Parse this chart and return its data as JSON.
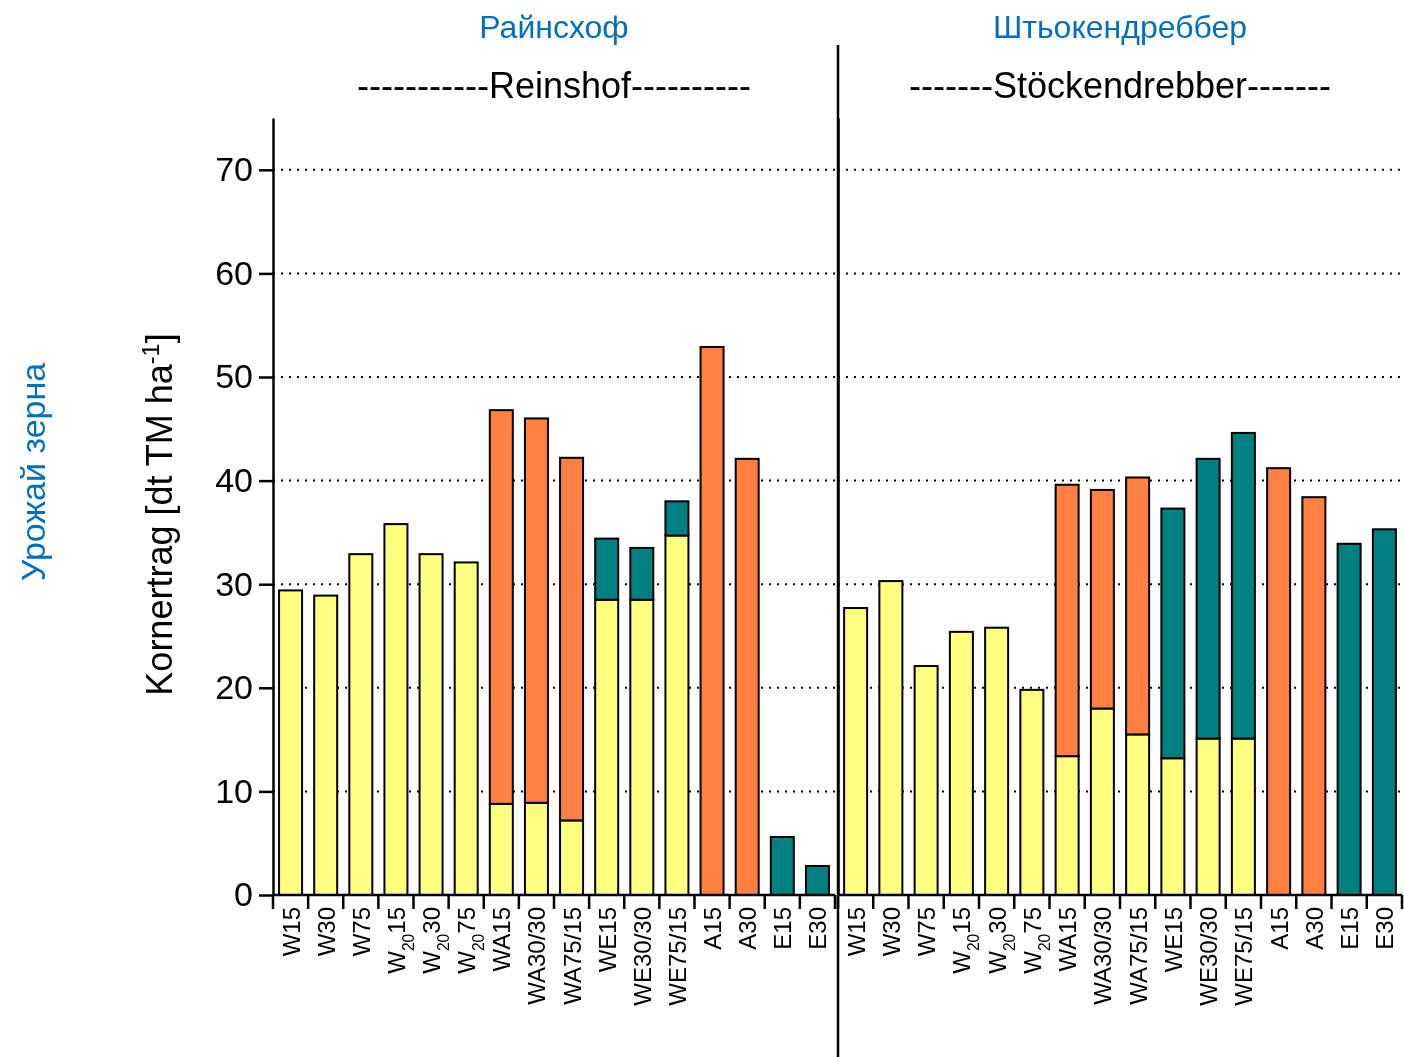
{
  "chart_data": [
    {
      "type": "bar",
      "title": "Райнсхоф",
      "subtitle": "-----------Reinshof----------",
      "ylabel": "Kornertrag [dt TM ha$^{-1}$]",
      "annotations": [
        "Урожай зерна"
      ],
      "categories": [
        "W15",
        "W30",
        "W75",
        "W$_{20}$15",
        "W$_{20}$30",
        "W$_{20}$75",
        "WA15",
        "WA30/30",
        "WA75/15",
        "WE15",
        "WE30/30",
        "WE75/15",
        "A15",
        "A30",
        "E15",
        "E30"
      ],
      "stacked": true,
      "ylim": [
        0,
        75
      ],
      "yticks": [
        0,
        10,
        20,
        30,
        40,
        50,
        60,
        70
      ],
      "grid": "y",
      "series": [
        {
          "values": [
            29.4,
            28.9,
            32.9,
            35.8,
            32.9,
            32.1,
            8.8,
            8.9,
            7.2,
            28.5,
            28.5,
            34.7,
            52.9,
            42.1,
            5.6,
            2.8
          ],
          "colors": [
            "#ffff80",
            "#ffff80",
            "#ffff80",
            "#ffff80",
            "#ffff80",
            "#ffff80",
            "#ffff80",
            "#ffff80",
            "#ffff80",
            "#ffff80",
            "#ffff80",
            "#ffff80",
            "#ff8040",
            "#ff8040",
            "#008080",
            "#008080"
          ]
        },
        {
          "values": [
            null,
            null,
            null,
            null,
            null,
            null,
            38.0,
            37.1,
            35.0,
            5.9,
            5.0,
            3.3,
            null,
            null,
            null,
            null
          ],
          "colors": [
            null,
            null,
            null,
            null,
            null,
            null,
            "#ff8040",
            "#ff8040",
            "#ff8040",
            "#008080",
            "#008080",
            "#008080",
            null,
            null,
            null,
            null
          ]
        }
      ]
    },
    {
      "type": "bar",
      "title": "Штьокендреббер",
      "subtitle": "-------Stöckendrebber-------",
      "categories": [
        "W15",
        "W30",
        "W75",
        "W$_{20}$15",
        "W$_{20}$30",
        "W$_{20}$75",
        "WA15",
        "WA30/30",
        "WA75/15",
        "WE15",
        "WE30/30",
        "WE75/15",
        "A15",
        "A30",
        "E15",
        "E30"
      ],
      "stacked": true,
      "ylim": [
        0,
        75
      ],
      "yticks": [
        0,
        10,
        20,
        30,
        40,
        50,
        60,
        70
      ],
      "grid": "y",
      "tick_labels": "x",
      "series": [
        {
          "values": [
            27.7,
            30.3,
            22.1,
            25.4,
            25.8,
            19.8,
            13.4,
            18.0,
            15.5,
            13.2,
            15.1,
            15.1,
            41.2,
            38.4,
            33.9,
            35.3
          ],
          "colors": [
            "#ffff80",
            "#ffff80",
            "#ffff80",
            "#ffff80",
            "#ffff80",
            "#ffff80",
            "#ffff80",
            "#ffff80",
            "#ffff80",
            "#ffff80",
            "#ffff80",
            "#ffff80",
            "#ff8040",
            "#ff8040",
            "#008080",
            "#008080"
          ]
        },
        {
          "values": [
            null,
            null,
            null,
            null,
            null,
            null,
            26.2,
            21.1,
            24.8,
            24.1,
            27.0,
            29.5,
            null,
            null,
            null,
            null
          ],
          "colors": [
            null,
            null,
            null,
            null,
            null,
            null,
            "#ff8040",
            "#ff8040",
            "#ff8040",
            "#008080",
            "#008080",
            "#008080",
            null,
            null,
            null,
            null
          ]
        }
      ]
    }
  ]
}
